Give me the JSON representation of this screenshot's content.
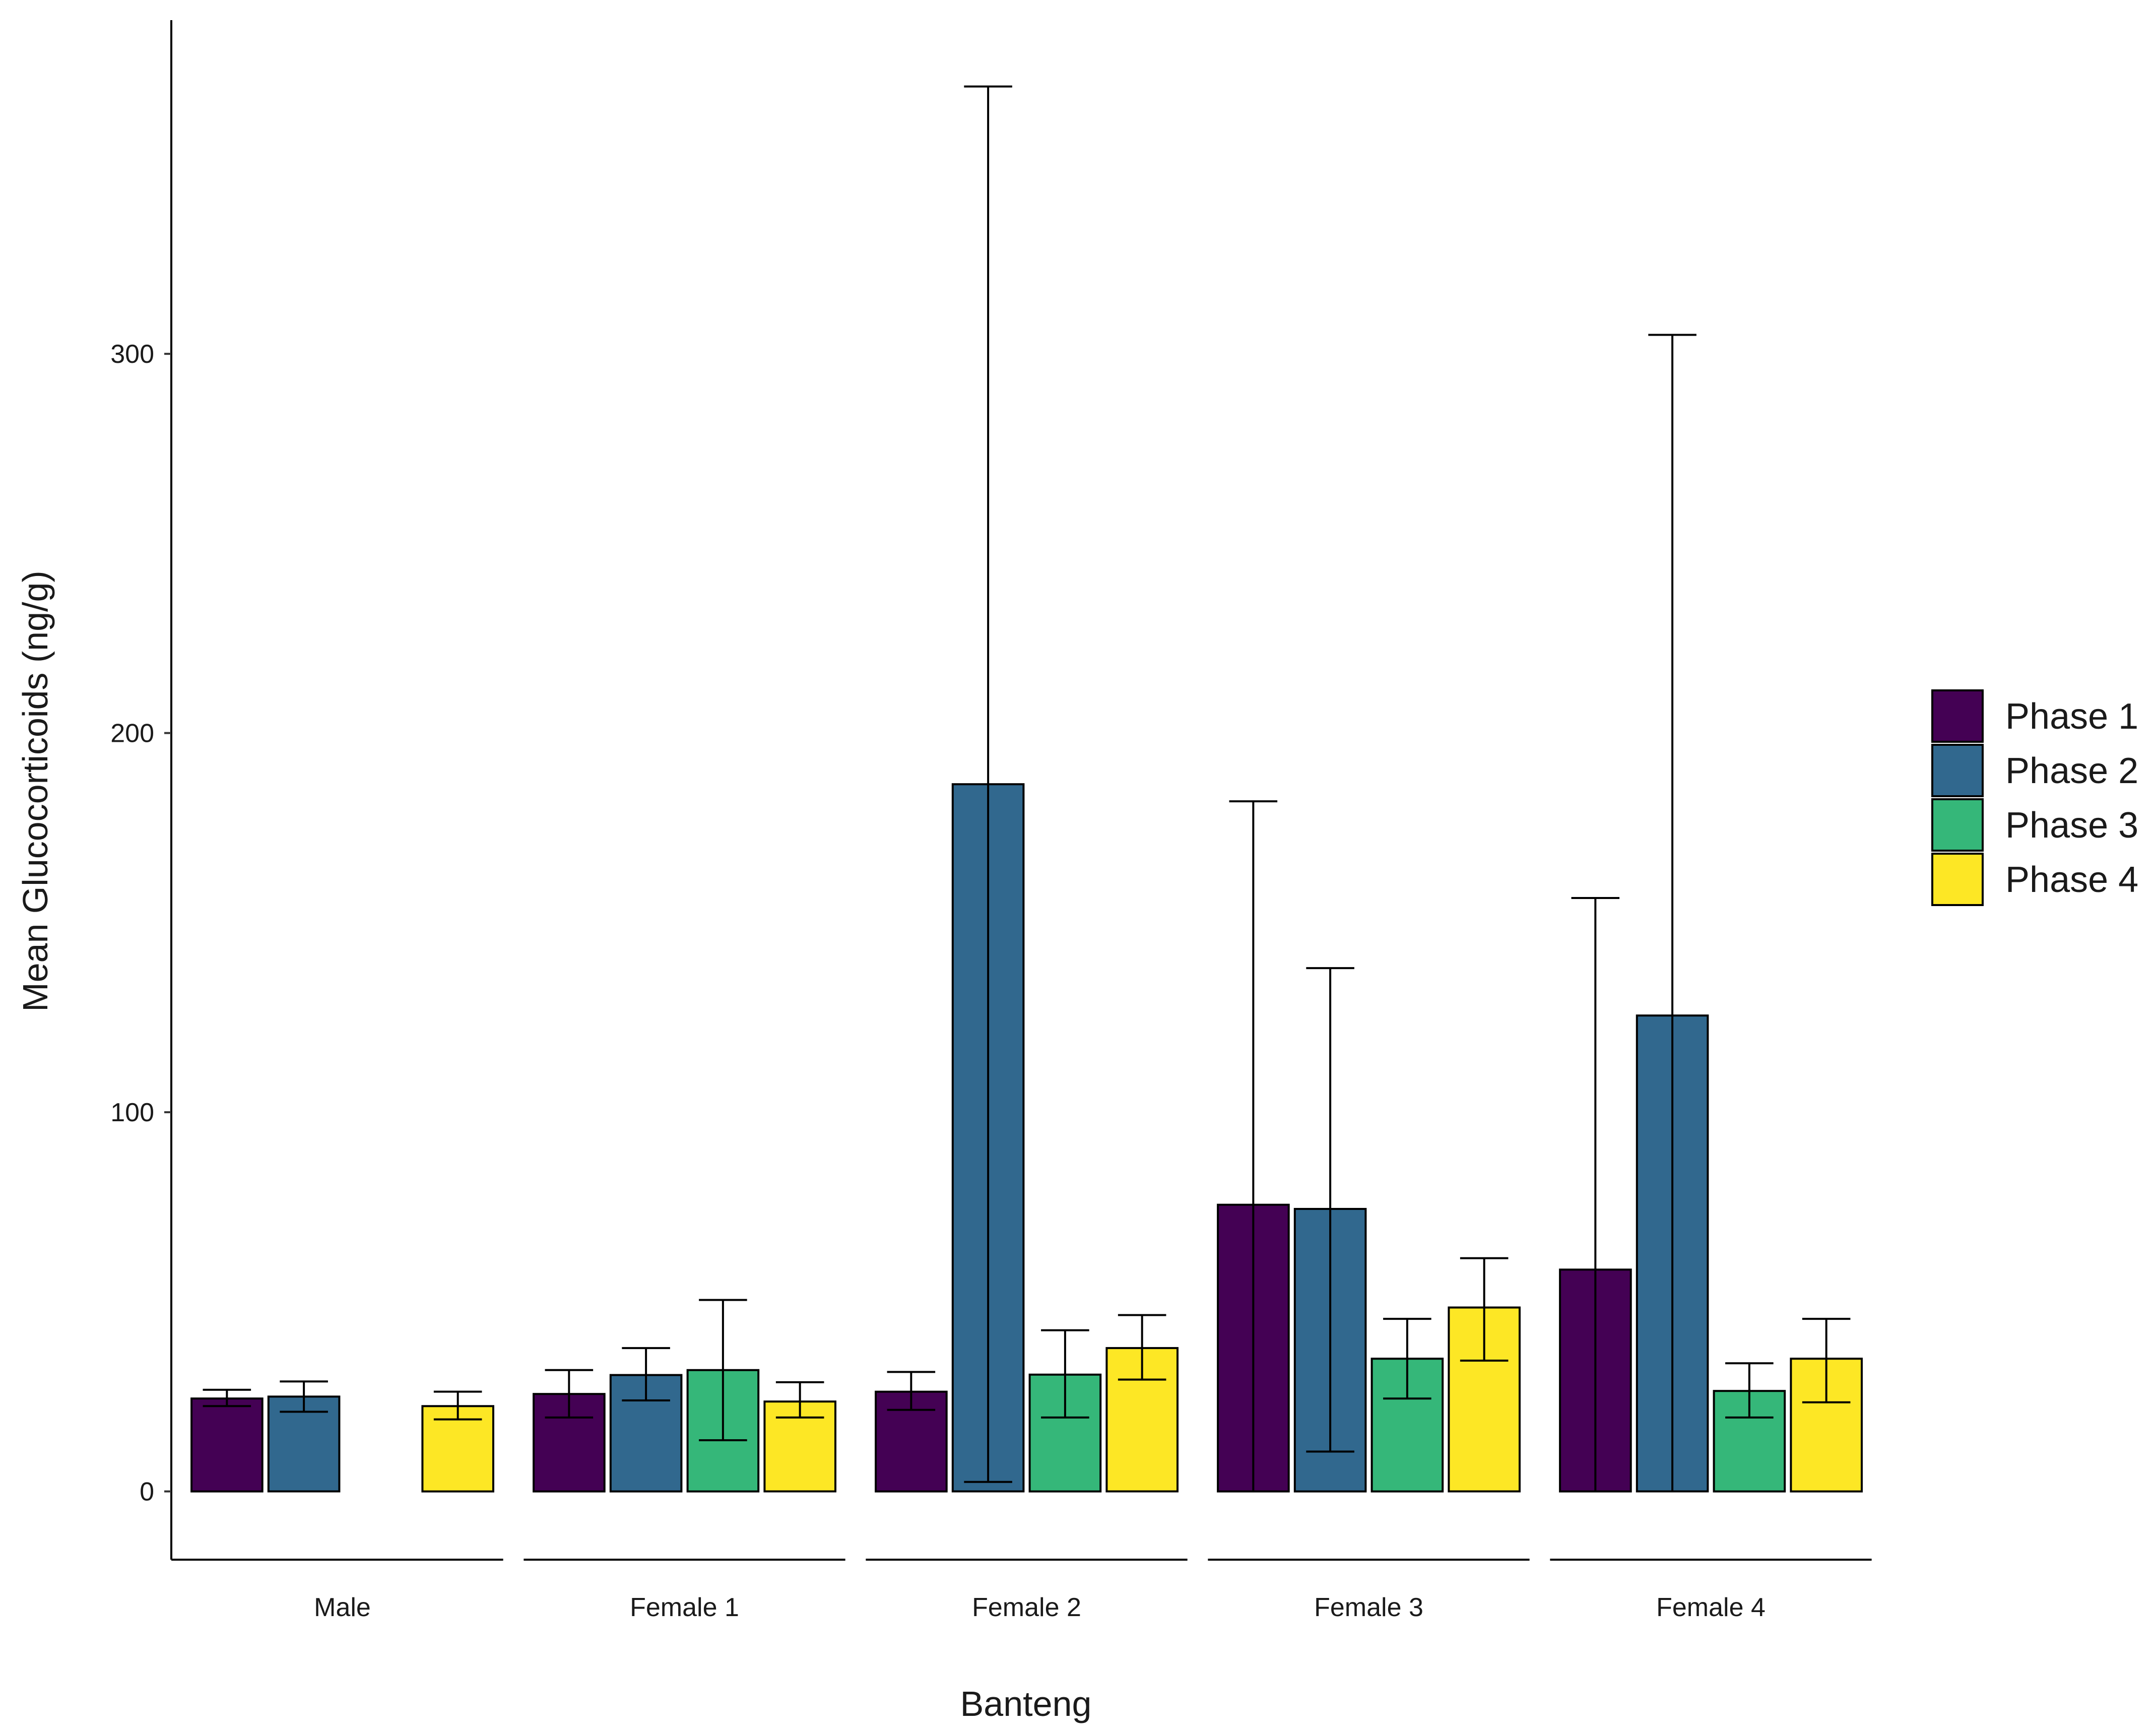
{
  "chart_data": {
    "type": "bar",
    "title": "",
    "xlabel": "Banteng",
    "ylabel": "Mean Glucocorticoids (ng/g)",
    "ylim": [
      -18,
      388
    ],
    "yticks": [
      0,
      100,
      200,
      300
    ],
    "grid": false,
    "legend_position": "right",
    "categories": [
      "Male",
      "Female 1",
      "Female 2",
      "Female 3",
      "Female 4"
    ],
    "series": [
      {
        "name": "Phase 1",
        "color": "#440154",
        "values": [
          24.5,
          25.7,
          26.3,
          75.6,
          58.5
        ],
        "err_low": [
          22.5,
          19.5,
          21.5,
          0,
          0
        ],
        "err_high": [
          26.8,
          32,
          31.5,
          182,
          156.5
        ]
      },
      {
        "name": "Phase 2",
        "color": "#31688E",
        "values": [
          25,
          30.7,
          186.5,
          74.5,
          125.5
        ],
        "err_low": [
          21,
          24,
          2.5,
          10.5,
          0
        ],
        "err_high": [
          29,
          37.8,
          370.5,
          138,
          305
        ]
      },
      {
        "name": "Phase 3",
        "color": "#35B779",
        "values": [
          null,
          32,
          30.8,
          35,
          26.5
        ],
        "err_low": [
          null,
          13.5,
          19.5,
          24.5,
          19.5
        ],
        "err_high": [
          null,
          50.5,
          42.5,
          45.5,
          33.8
        ]
      },
      {
        "name": "Phase 4",
        "color": "#FDE725",
        "values": [
          22.5,
          23.7,
          37.8,
          48.5,
          35
        ],
        "err_low": [
          19,
          19.5,
          29.5,
          34.5,
          23.5
        ],
        "err_high": [
          26.3,
          28.8,
          46.5,
          61.5,
          45.5
        ]
      }
    ]
  }
}
